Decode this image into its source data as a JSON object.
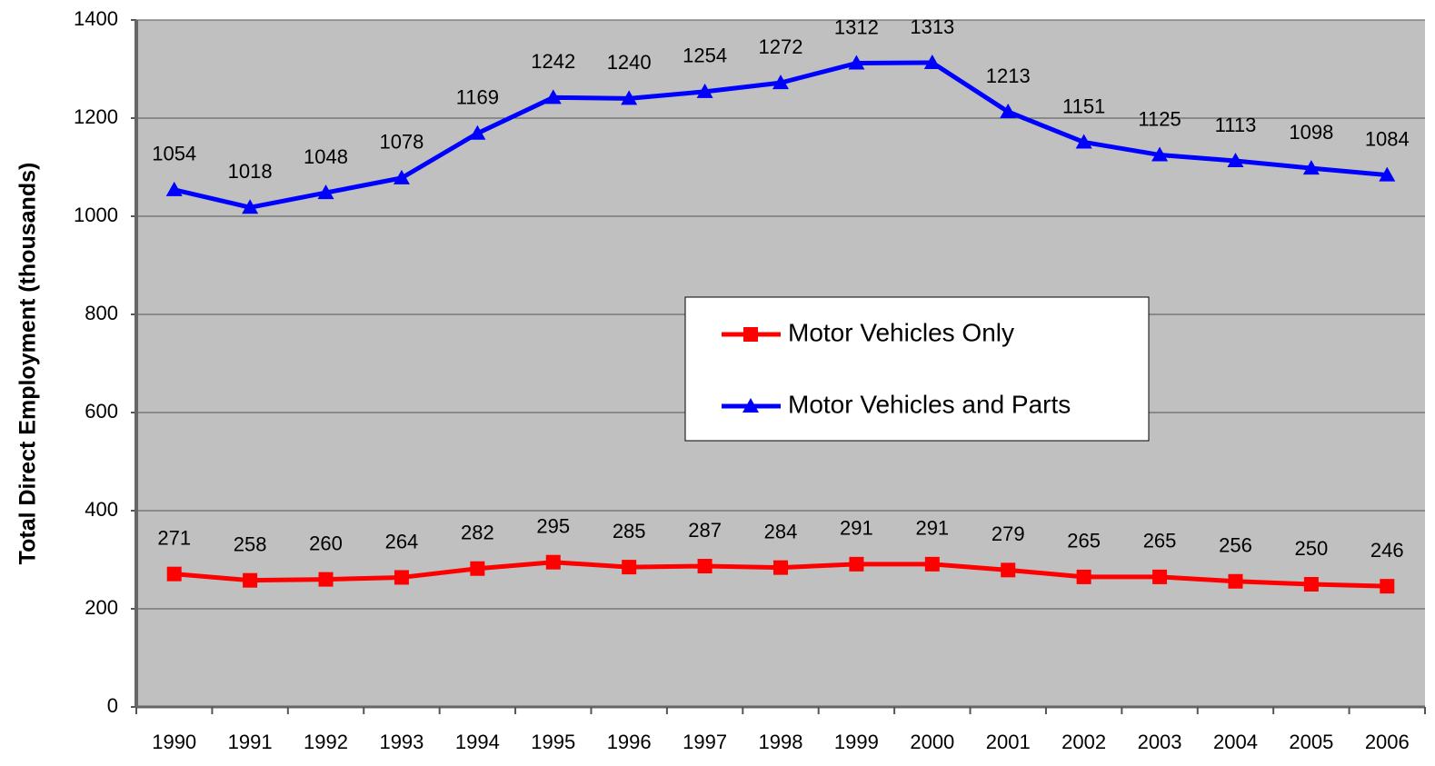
{
  "chart_data": {
    "type": "line",
    "y_label": "Total Direct Employment (thousands)",
    "categories": [
      "1990",
      "1991",
      "1992",
      "1993",
      "1994",
      "1995",
      "1996",
      "1997",
      "1998",
      "1999",
      "2000",
      "2001",
      "2002",
      "2003",
      "2004",
      "2005",
      "2006"
    ],
    "series": [
      {
        "name": "Motor Vehicles Only",
        "color": "#ff0000",
        "marker": "square",
        "values": [
          271,
          258,
          260,
          264,
          282,
          295,
          285,
          287,
          284,
          291,
          291,
          279,
          265,
          265,
          256,
          250,
          246
        ]
      },
      {
        "name": "Motor Vehicles and Parts",
        "color": "#0000ff",
        "marker": "triangle",
        "values": [
          1054,
          1018,
          1048,
          1078,
          1169,
          1242,
          1240,
          1254,
          1272,
          1312,
          1313,
          1213,
          1151,
          1125,
          1113,
          1098,
          1084
        ]
      }
    ],
    "ylim": [
      0,
      1400
    ],
    "yticks": [
      0,
      200,
      400,
      600,
      800,
      1000,
      1200,
      1400
    ],
    "grid": true,
    "legend": "center",
    "plot_background": "#c0c0c0"
  }
}
